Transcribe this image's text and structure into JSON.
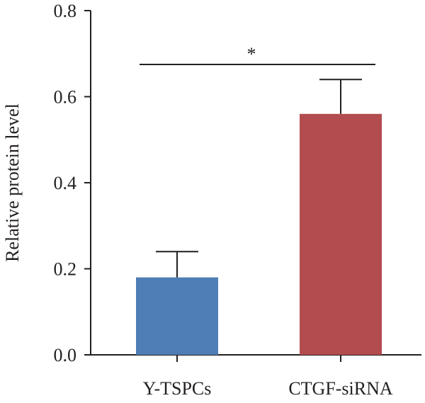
{
  "chart_data": {
    "type": "bar",
    "categories": [
      "Y-TSPCs",
      "CTGF-siRNA"
    ],
    "values": [
      0.18,
      0.56
    ],
    "errors": [
      0.06,
      0.08
    ],
    "colors": [
      "#4f7db5",
      "#b34c4e"
    ],
    "ylabel": "Relative protein level",
    "ylim": [
      0,
      0.8
    ],
    "yticks": [
      "0.0",
      "0.2",
      "0.4",
      "0.6",
      "0.8"
    ],
    "significance": {
      "label": "*",
      "y": 0.675,
      "from": 0,
      "to": 1
    }
  }
}
